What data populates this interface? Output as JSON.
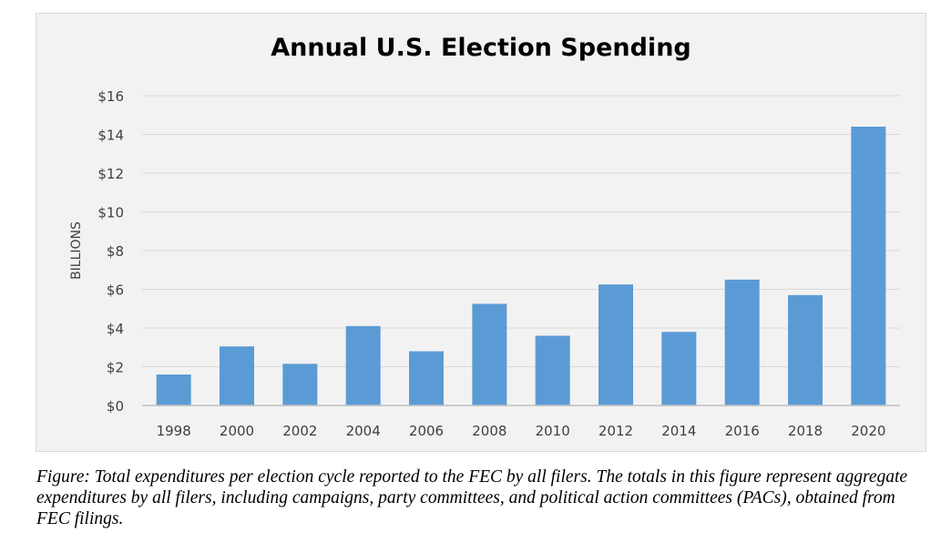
{
  "chart_data": {
    "type": "bar",
    "title": "Annual U.S. Election Spending",
    "xlabel": "",
    "ylabel": "BILLIONS",
    "categories": [
      "1998",
      "2000",
      "2002",
      "2004",
      "2006",
      "2008",
      "2010",
      "2012",
      "2014",
      "2016",
      "2018",
      "2020"
    ],
    "values": [
      1.6,
      3.05,
      2.15,
      4.1,
      2.8,
      5.25,
      3.6,
      6.25,
      3.8,
      6.5,
      5.7,
      14.4
    ],
    "ylim": [
      0,
      16
    ],
    "yticks": [
      0,
      2,
      4,
      6,
      8,
      10,
      12,
      14,
      16
    ],
    "ytick_labels": [
      "$0",
      "$2",
      "$4",
      "$6",
      "$8",
      "$10",
      "$12",
      "$14",
      "$16"
    ],
    "grid": true,
    "legend": "none",
    "bar_color": "#5b9bd5"
  },
  "caption": "Figure: Total expenditures per election cycle reported to the FEC by all filers. The totals in this figure represent aggregate expenditures by all filers, including campaigns, party committees, and political action committees (PACs), obtained from FEC filings."
}
